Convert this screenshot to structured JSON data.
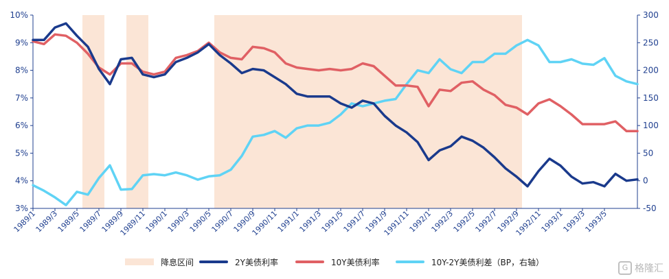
{
  "chart_data": {
    "type": "line",
    "title": "",
    "x_tick_labels": [
      "1989/1",
      "1989/3",
      "1989/5",
      "1989/7",
      "1989/9",
      "1989/11",
      "1990/1",
      "1990/3",
      "1990/5",
      "1990/7",
      "1990/9",
      "1990/11",
      "1991/1",
      "1991/3",
      "1991/5",
      "1991/7",
      "1991/9",
      "1991/11",
      "1992/1",
      "1992/3",
      "1992/5",
      "1992/7",
      "1992/9",
      "1992/11",
      "1993/1",
      "1993/3",
      "1993/5"
    ],
    "y_left": {
      "ylim": [
        3,
        10
      ],
      "ticks": [
        "3%",
        "4%",
        "5%",
        "6%",
        "7%",
        "8%",
        "9%",
        "10%"
      ]
    },
    "y_right": {
      "ylim": [
        -50,
        300
      ],
      "ticks": [
        "-50",
        "0",
        "50",
        "100",
        "150",
        "200",
        "250",
        "300"
      ]
    },
    "shaded_regions": {
      "name": "降息区间",
      "color": "#fbe5d6",
      "ranges": [
        [
          "1989/6",
          "1989/7"
        ],
        [
          "1989/10",
          "1989/11"
        ],
        [
          "1990/6",
          "1992/9"
        ]
      ]
    },
    "series": [
      {
        "name": "2Y美债利率",
        "axis": "left",
        "color": "#1a3a8c",
        "values": [
          9.1,
          9.1,
          9.55,
          9.7,
          9.25,
          8.85,
          8.05,
          7.5,
          8.4,
          8.45,
          7.85,
          7.75,
          7.85,
          8.3,
          8.45,
          8.65,
          8.95,
          8.55,
          8.25,
          7.9,
          8.05,
          8.0,
          7.75,
          7.5,
          7.15,
          7.05,
          7.05,
          7.05,
          6.8,
          6.65,
          6.9,
          6.8,
          6.35,
          6.0,
          5.75,
          5.4,
          4.75,
          5.1,
          5.25,
          5.6,
          5.45,
          5.2,
          4.85,
          4.45,
          4.15,
          3.8,
          4.35,
          4.8,
          4.55,
          4.15,
          3.9,
          3.95,
          3.8,
          4.25,
          4.0,
          4.05
        ]
      },
      {
        "name": "10Y美债利率",
        "axis": "left",
        "color": "#e06064",
        "values": [
          9.05,
          8.95,
          9.3,
          9.25,
          9.0,
          8.6,
          8.1,
          7.85,
          8.25,
          8.25,
          7.95,
          7.85,
          7.95,
          8.45,
          8.55,
          8.7,
          9.0,
          8.65,
          8.45,
          8.4,
          8.85,
          8.8,
          8.65,
          8.25,
          8.1,
          8.05,
          8.0,
          8.05,
          8.0,
          8.05,
          8.25,
          8.15,
          7.8,
          7.45,
          7.45,
          7.4,
          6.7,
          7.3,
          7.25,
          7.55,
          7.6,
          7.3,
          7.1,
          6.75,
          6.65,
          6.4,
          6.8,
          6.95,
          6.7,
          6.4,
          6.05,
          6.05,
          6.05,
          6.15,
          5.8,
          5.8
        ]
      },
      {
        "name": "10Y-2Y美债利差（BP，右轴）",
        "axis": "right",
        "color": "#5fd3f5",
        "values": [
          -8,
          -18,
          -30,
          -44,
          -20,
          -25,
          5,
          28,
          -16,
          -15,
          10,
          12,
          10,
          15,
          10,
          2,
          8,
          10,
          20,
          45,
          80,
          83,
          90,
          78,
          95,
          100,
          100,
          105,
          120,
          140,
          135,
          140,
          145,
          148,
          175,
          200,
          195,
          220,
          202,
          195,
          215,
          215,
          230,
          230,
          245,
          255,
          245,
          215,
          215,
          220,
          212,
          210,
          222,
          190,
          180,
          175
        ]
      }
    ],
    "legend_position": "bottom",
    "grid": false
  },
  "legend": [
    {
      "label": "降息区间"
    },
    {
      "label": "2Y美债利率"
    },
    {
      "label": "10Y美债利率"
    },
    {
      "label": "10Y-2Y美债利差（BP，右轴）"
    }
  ],
  "watermark": {
    "icon": "G",
    "text": "格隆汇"
  }
}
